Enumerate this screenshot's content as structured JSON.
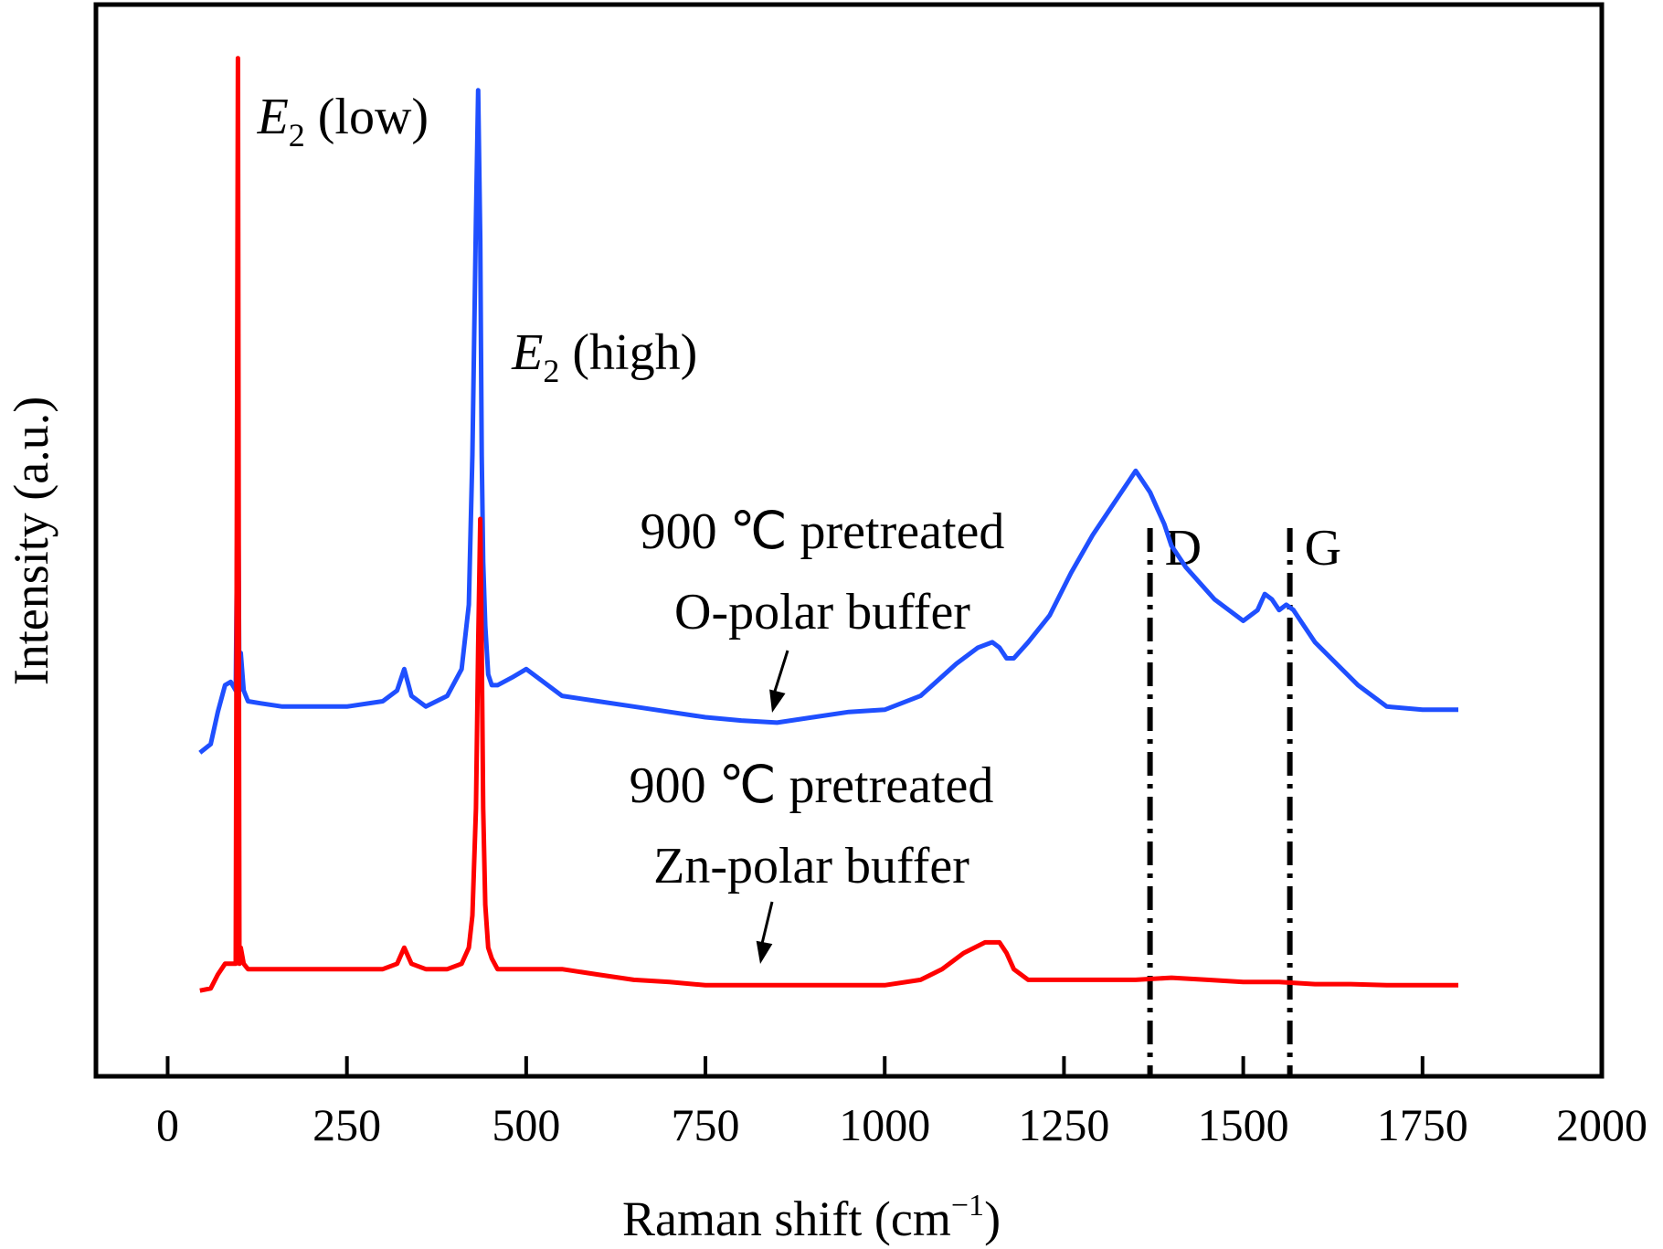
{
  "chart_data": {
    "type": "line",
    "title": "",
    "xlabel": "Raman shift (cm",
    "xlabel_sup": "−1",
    "xlabel_close": ")",
    "ylabel": "Intensity (a.u.)",
    "xlim": [
      -100,
      2000
    ],
    "ylim": [
      0,
      100
    ],
    "y_ticks_shown": false,
    "grid": false,
    "legend": "none",
    "xticks": [
      0,
      250,
      500,
      750,
      1000,
      1250,
      1500,
      1750,
      2000
    ],
    "series": [
      {
        "label_line1": "900 ℃ pretreated",
        "label_line2": "O-polar buffer",
        "color": "#1f4fff",
        "x": [
          45,
          60,
          70,
          80,
          88,
          95,
          98,
          100,
          102,
          106,
          112,
          130,
          160,
          200,
          250,
          300,
          320,
          330,
          340,
          360,
          390,
          410,
          420,
          425,
          430,
          433,
          436,
          438,
          440,
          443,
          447,
          452,
          460,
          480,
          500,
          520,
          550,
          600,
          650,
          700,
          750,
          800,
          850,
          900,
          950,
          1000,
          1050,
          1100,
          1130,
          1150,
          1160,
          1170,
          1180,
          1200,
          1230,
          1260,
          1290,
          1320,
          1340,
          1350,
          1360,
          1370,
          1380,
          1390,
          1400,
          1420,
          1440,
          1460,
          1480,
          1500,
          1520,
          1530,
          1540,
          1550,
          1560,
          1570,
          1580,
          1600,
          1630,
          1660,
          1700,
          1750,
          1800
        ],
        "y": [
          30.2,
          31.0,
          34.0,
          36.5,
          36.8,
          36.0,
          58.0,
          36.0,
          39.5,
          36.0,
          35.0,
          34.8,
          34.5,
          34.5,
          34.5,
          35.0,
          36.0,
          38.0,
          35.5,
          34.5,
          35.5,
          38.0,
          44.0,
          58.0,
          80.0,
          92.0,
          78.0,
          58.0,
          48.0,
          42.0,
          37.5,
          36.5,
          36.5,
          37.2,
          38.0,
          37.0,
          35.5,
          35.0,
          34.5,
          34.0,
          33.5,
          33.2,
          33.0,
          33.5,
          34.0,
          34.2,
          35.5,
          38.5,
          40.0,
          40.5,
          40.0,
          39.0,
          39.0,
          40.5,
          43.0,
          47.0,
          50.5,
          53.5,
          55.5,
          56.5,
          55.5,
          54.5,
          53.0,
          51.5,
          49.5,
          47.5,
          46.0,
          44.5,
          43.5,
          42.5,
          43.5,
          45.0,
          44.5,
          43.5,
          44.0,
          43.5,
          42.5,
          40.5,
          38.5,
          36.5,
          34.5,
          34.2,
          34.2
        ]
      },
      {
        "label_line1": "900 ℃ pretreated",
        "label_line2": "Zn-polar buffer",
        "color": "#ff0000",
        "x": [
          45,
          60,
          70,
          80,
          90,
          95,
          98,
          100,
          102,
          106,
          112,
          130,
          160,
          200,
          250,
          300,
          320,
          330,
          340,
          360,
          390,
          410,
          420,
          425,
          430,
          433,
          436,
          438,
          440,
          443,
          447,
          452,
          460,
          480,
          500,
          550,
          600,
          650,
          700,
          750,
          800,
          850,
          900,
          950,
          1000,
          1050,
          1080,
          1110,
          1140,
          1160,
          1170,
          1180,
          1200,
          1250,
          1300,
          1350,
          1400,
          1450,
          1500,
          1550,
          1600,
          1650,
          1700,
          1750,
          1800
        ],
        "y": [
          8.0,
          8.2,
          9.5,
          10.5,
          10.5,
          10.5,
          95.0,
          10.5,
          12.0,
          10.5,
          10.0,
          10.0,
          10.0,
          10.0,
          10.0,
          10.0,
          10.5,
          12.0,
          10.5,
          10.0,
          10.0,
          10.5,
          12.0,
          15.0,
          25.0,
          40.0,
          52.0,
          40.0,
          25.0,
          16.0,
          12.0,
          11.0,
          10.0,
          10.0,
          10.0,
          10.0,
          9.5,
          9.0,
          8.8,
          8.5,
          8.5,
          8.5,
          8.5,
          8.5,
          8.5,
          9.0,
          10.0,
          11.5,
          12.5,
          12.5,
          11.5,
          10.0,
          9.0,
          9.0,
          9.0,
          9.0,
          9.2,
          9.0,
          8.8,
          8.8,
          8.6,
          8.6,
          8.5,
          8.5,
          8.5
        ]
      }
    ],
    "reference_lines": [
      {
        "label": "D",
        "x": 1370
      },
      {
        "label": "G",
        "x": 1565
      }
    ],
    "peak_labels": [
      {
        "symbol": "E",
        "sub": "2",
        "text": " (low)",
        "x": 125,
        "y": 88
      },
      {
        "symbol": "E",
        "sub": "2",
        "text": " (high)",
        "x": 480,
        "y": 66
      }
    ]
  }
}
